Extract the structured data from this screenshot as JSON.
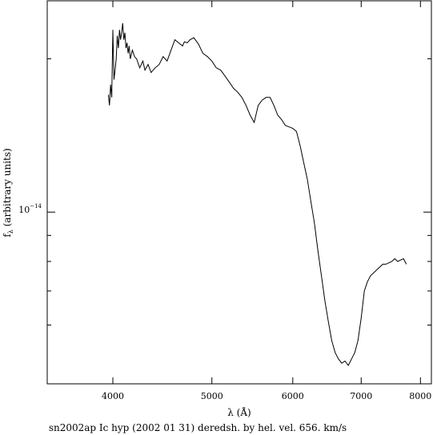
{
  "chart_data": {
    "type": "line",
    "title": "",
    "caption": "sn2002ap Ic hyp (2002 01 31) deredsh. by hel. vel.   656. km/s",
    "xlabel": "λ (Å)",
    "ylabel": "f",
    "ylabel_sub": "λ",
    "ylabel_rest": " (arbitrary units)",
    "xscale": "log",
    "yscale": "log",
    "xlim": [
      3450,
      8200
    ],
    "ylim": [
      4.6e-15,
      2.6e-14
    ],
    "grid": false,
    "x_ticks": [
      {
        "value": 4000,
        "label": "4000"
      },
      {
        "value": 5000,
        "label": "5000"
      },
      {
        "value": 6000,
        "label": "6000"
      },
      {
        "value": 7000,
        "label": "7000"
      },
      {
        "value": 8000,
        "label": "8000"
      }
    ],
    "y_major_tick": {
      "value": 1e-14,
      "mantissa": "10",
      "exponent": "−14"
    },
    "y_minor_ticks": [
      6e-15,
      7e-15,
      8e-15,
      9e-15,
      2e-14
    ],
    "series": [
      {
        "name": "",
        "x": [
          3960,
          3970,
          3980,
          3990,
          4000,
          4010,
          4020,
          4030,
          4040,
          4050,
          4060,
          4070,
          4080,
          4090,
          4100,
          4110,
          4120,
          4130,
          4140,
          4150,
          4160,
          4180,
          4200,
          4220,
          4250,
          4280,
          4300,
          4330,
          4360,
          4400,
          4440,
          4480,
          4520,
          4560,
          4600,
          4640,
          4680,
          4700,
          4730,
          4760,
          4800,
          4850,
          4900,
          4950,
          5000,
          5050,
          5100,
          5150,
          5200,
          5250,
          5300,
          5350,
          5400,
          5450,
          5500,
          5550,
          5600,
          5650,
          5700,
          5750,
          5800,
          5850,
          5900,
          5950,
          6000,
          6050,
          6100,
          6150,
          6200,
          6250,
          6300,
          6350,
          6400,
          6450,
          6500,
          6550,
          6600,
          6650,
          6700,
          6750,
          6800,
          6850,
          6900,
          6950,
          7000,
          7050,
          7100,
          7150,
          7200,
          7250,
          7300,
          7350,
          7400,
          7450,
          7500,
          7550,
          7600,
          7650,
          7700,
          7750
        ],
        "y": [
          1.7e-14,
          1.62e-14,
          1.78e-14,
          1.68e-14,
          2.28e-14,
          1.82e-14,
          1.9e-14,
          2e-14,
          2.22e-14,
          2.1e-14,
          2.28e-14,
          2.18e-14,
          2.25e-14,
          2.35e-14,
          2.18e-14,
          2.25e-14,
          2.1e-14,
          2.15e-14,
          2.05e-14,
          2.12e-14,
          2e-14,
          2.08e-14,
          2.02e-14,
          2e-14,
          1.92e-14,
          1.98e-14,
          1.9e-14,
          1.95e-14,
          1.88e-14,
          1.92e-14,
          1.95e-14,
          2.02e-14,
          1.98e-14,
          2.08e-14,
          2.18e-14,
          2.15e-14,
          2.12e-14,
          2.16e-14,
          2.15e-14,
          2.18e-14,
          2.2e-14,
          2.14e-14,
          2.05e-14,
          2.02e-14,
          1.98e-14,
          1.92e-14,
          1.9e-14,
          1.85e-14,
          1.8e-14,
          1.75e-14,
          1.72e-14,
          1.68e-14,
          1.62e-14,
          1.55e-14,
          1.5e-14,
          1.62e-14,
          1.66e-14,
          1.68e-14,
          1.68e-14,
          1.62e-14,
          1.55e-14,
          1.52e-14,
          1.48e-14,
          1.47e-14,
          1.46e-14,
          1.44e-14,
          1.35e-14,
          1.25e-14,
          1.16e-14,
          1.05e-14,
          9.5e-15,
          8.4e-15,
          7.5e-15,
          6.7e-15,
          6.1e-15,
          5.6e-15,
          5.3e-15,
          5.15e-15,
          5.05e-15,
          5.1e-15,
          5e-15,
          5.15e-15,
          5.3e-15,
          5.6e-15,
          6.2e-15,
          7e-15,
          7.3e-15,
          7.5e-15,
          7.6e-15,
          7.7e-15,
          7.8e-15,
          7.9e-15,
          7.9e-15,
          7.95e-15,
          8e-15,
          8.1e-15,
          8e-15,
          8.05e-15,
          8.1e-15,
          7.9e-15
        ]
      }
    ],
    "line_color": "#000000"
  }
}
